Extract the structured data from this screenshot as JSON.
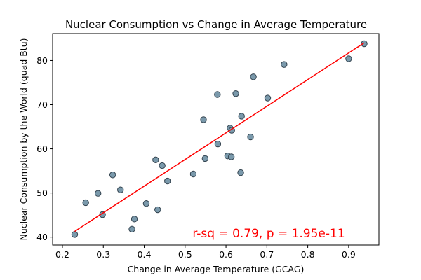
{
  "chart_data": {
    "type": "scatter",
    "title": "Nuclear Consumption vs Change in Average Temperature",
    "xlabel": "Change in Average Temperature (GCAG)",
    "ylabel": "Nuclear Consumption by the World (quad Btu)",
    "xlim": [
      0.176,
      0.974
    ],
    "ylim": [
      38.2,
      86.1
    ],
    "xticks": [
      0.2,
      0.3,
      0.4,
      0.5,
      0.6,
      0.7,
      0.8,
      0.9
    ],
    "xtick_labels": [
      "0.2",
      "0.3",
      "0.4",
      "0.5",
      "0.6",
      "0.7",
      "0.8",
      "0.9"
    ],
    "yticks": [
      40,
      50,
      60,
      70,
      80
    ],
    "ytick_labels": [
      "40",
      "50",
      "60",
      "70",
      "80"
    ],
    "grid": false,
    "point_color": "#7a99ab",
    "point_edge_color": "#33434f",
    "fit_color": "#ff0000",
    "annotation": "r-sq = 0.79, p = 1.95e-11",
    "annotation_color": "#ff0000",
    "points": [
      {
        "x": 0.23,
        "y": 40.6
      },
      {
        "x": 0.257,
        "y": 47.8
      },
      {
        "x": 0.287,
        "y": 49.9
      },
      {
        "x": 0.298,
        "y": 45.1
      },
      {
        "x": 0.323,
        "y": 54.1
      },
      {
        "x": 0.342,
        "y": 50.7
      },
      {
        "x": 0.37,
        "y": 41.8
      },
      {
        "x": 0.376,
        "y": 44.1
      },
      {
        "x": 0.405,
        "y": 47.6
      },
      {
        "x": 0.428,
        "y": 57.5
      },
      {
        "x": 0.433,
        "y": 46.2
      },
      {
        "x": 0.444,
        "y": 56.2
      },
      {
        "x": 0.457,
        "y": 52.7
      },
      {
        "x": 0.52,
        "y": 54.3
      },
      {
        "x": 0.545,
        "y": 66.6
      },
      {
        "x": 0.549,
        "y": 57.8
      },
      {
        "x": 0.579,
        "y": 72.3
      },
      {
        "x": 0.58,
        "y": 61.1
      },
      {
        "x": 0.604,
        "y": 58.4
      },
      {
        "x": 0.61,
        "y": 64.7
      },
      {
        "x": 0.613,
        "y": 58.2
      },
      {
        "x": 0.614,
        "y": 64.2
      },
      {
        "x": 0.624,
        "y": 72.5
      },
      {
        "x": 0.636,
        "y": 54.6
      },
      {
        "x": 0.638,
        "y": 67.4
      },
      {
        "x": 0.66,
        "y": 62.7
      },
      {
        "x": 0.667,
        "y": 76.3
      },
      {
        "x": 0.702,
        "y": 71.5
      },
      {
        "x": 0.742,
        "y": 79.1
      },
      {
        "x": 0.9,
        "y": 80.4
      },
      {
        "x": 0.938,
        "y": 83.8
      }
    ],
    "fit_line": {
      "x": [
        0.23,
        0.938
      ],
      "y": [
        41.3,
        84.0
      ]
    }
  }
}
